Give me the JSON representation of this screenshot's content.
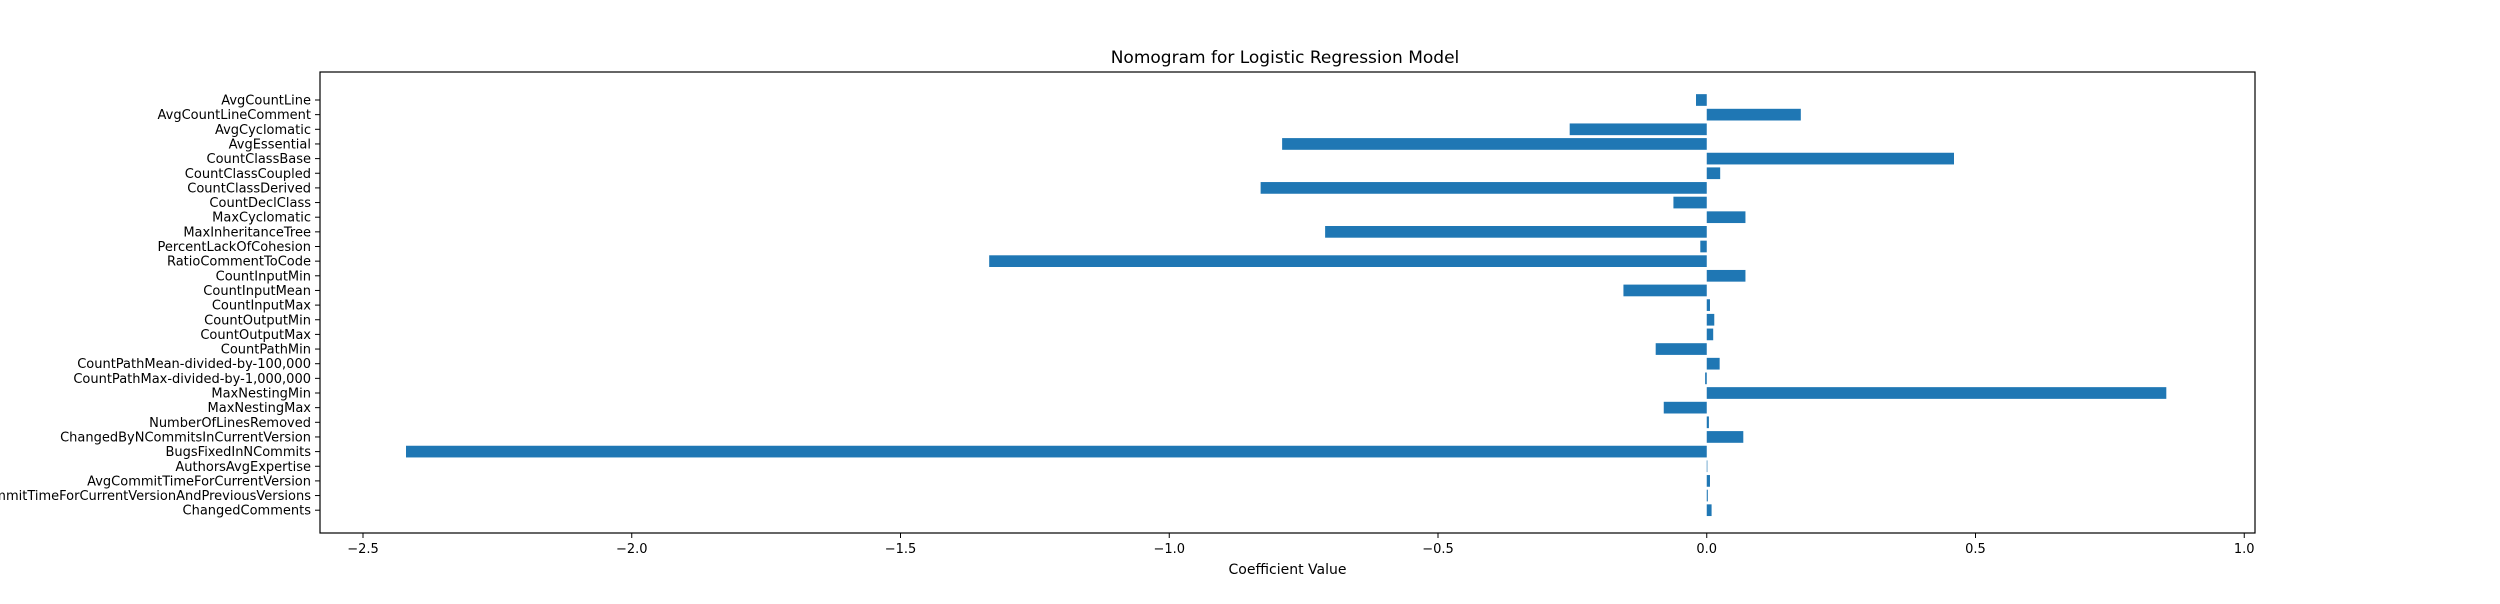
{
  "chart_data": {
    "type": "bar",
    "orientation": "horizontal",
    "title": "Nomogram for Logistic Regression Model",
    "xlabel": "Coefficient Value",
    "ylabel": "",
    "xlim": [
      -2.58,
      1.02
    ],
    "xticks": [
      -2.5,
      -2.0,
      -1.5,
      -1.0,
      -0.5,
      0.0,
      0.5,
      1.0
    ],
    "xtick_labels": [
      "−2.5",
      "−2.0",
      "−1.5",
      "−1.0",
      "−0.5",
      "0.0",
      "0.5",
      "1.0"
    ],
    "grid": false,
    "legend": "none",
    "bar_color": "#1f77b4",
    "categories": [
      "AvgCountLine",
      "AvgCountLineComment",
      "AvgCyclomatic",
      "AvgEssential",
      "CountClassBase",
      "CountClassCoupled",
      "CountClassDerived",
      "CountDeclClass",
      "MaxCyclomatic",
      "MaxInheritanceTree",
      "PercentLackOfCohesion",
      "RatioCommentToCode",
      "CountInputMin",
      "CountInputMean",
      "CountInputMax",
      "CountOutputMin",
      "CountOutputMax",
      "CountPathMin",
      "CountPathMean-divided-by-100,000",
      "CountPathMax-divided-by-1,000,000",
      "MaxNestingMin",
      "MaxNestingMax",
      "NumberOfLinesRemoved",
      "ChangedByNCommitsInCurrentVersion",
      "BugsFixedInNCommits",
      "AuthorsAvgExpertise",
      "AvgCommitTimeForCurrentVersion",
      "AvgCommitTimeForCurrentVersionAndPreviousVersions",
      "ChangedComments"
    ],
    "values": [
      -0.02,
      0.175,
      -0.255,
      -0.79,
      0.46,
      0.025,
      -0.83,
      -0.062,
      0.072,
      -0.71,
      -0.012,
      -1.335,
      0.072,
      -0.155,
      0.006,
      0.014,
      0.012,
      -0.095,
      0.024,
      -0.003,
      0.855,
      -0.08,
      0.004,
      0.068,
      -2.42,
      0.001,
      0.006,
      0.002,
      0.009
    ]
  }
}
